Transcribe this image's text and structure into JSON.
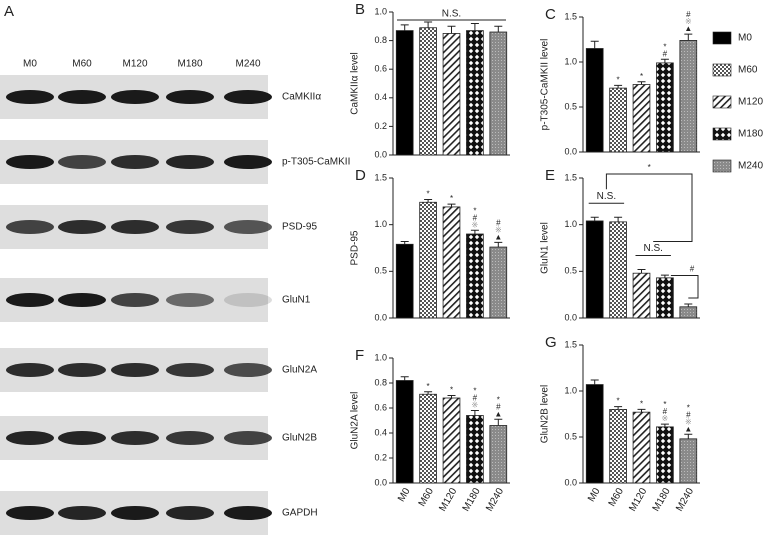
{
  "blot": {
    "panel_label": "A",
    "lanes": [
      "M0",
      "M60",
      "M120",
      "M180",
      "M240"
    ],
    "proteins": [
      "CaMKIIα",
      "p-T305-CaMKII",
      "PSD-95",
      "GluN1",
      "GluN2A",
      "GluN2B",
      "GAPDH"
    ]
  },
  "legend": [
    {
      "name": "M0",
      "pattern": "solid"
    },
    {
      "name": "M60",
      "pattern": "check"
    },
    {
      "name": "M120",
      "pattern": "hatch"
    },
    {
      "name": "M180",
      "pattern": "diamond"
    },
    {
      "name": "M240",
      "pattern": "gray"
    }
  ],
  "chart_data": [
    {
      "type": "bar",
      "panel_label": "B",
      "ylabel": "CaMKIIα level",
      "values": [
        0.87,
        0.89,
        0.85,
        0.87,
        0.86
      ],
      "errors": [
        0.04,
        0.04,
        0.05,
        0.05,
        0.04
      ],
      "ylim": [
        0,
        1.0
      ],
      "yticks": [
        {
          "value": 0,
          "label": "0.0"
        },
        0.2,
        0.4,
        0.6,
        0.8,
        {
          "value": 1.0,
          "label": "1.0"
        }
      ],
      "annotation": "N.S.",
      "bar_annotations": [
        [],
        [],
        [],
        [],
        []
      ]
    },
    {
      "type": "bar",
      "panel_label": "C",
      "ylabel": "p-T305-CaMKII level",
      "values": [
        1.15,
        0.71,
        0.75,
        0.99,
        1.24
      ],
      "errors": [
        0.08,
        0.03,
        0.03,
        0.04,
        0.07
      ],
      "ylim": [
        0,
        1.5
      ],
      "yticks": [
        {
          "value": 0,
          "label": "0.0"
        },
        0.5,
        {
          "value": 1.0,
          "label": "1.0"
        },
        1.5
      ],
      "bar_annotations": [
        [],
        [
          "*"
        ],
        [
          "*"
        ],
        [
          "*",
          "#"
        ],
        [
          "#",
          "※",
          "▲"
        ]
      ]
    },
    {
      "type": "bar",
      "panel_label": "D",
      "ylabel": "PSD-95",
      "values": [
        0.79,
        1.24,
        1.19,
        0.9,
        0.76
      ],
      "errors": [
        0.03,
        0.03,
        0.03,
        0.04,
        0.05
      ],
      "ylim": [
        0,
        1.5
      ],
      "yticks": [
        {
          "value": 0,
          "label": "0.0"
        },
        0.5,
        {
          "value": 1.0,
          "label": "1.0"
        },
        1.5
      ],
      "bar_annotations": [
        [],
        [
          "*"
        ],
        [
          "*"
        ],
        [
          "*",
          "#",
          "※"
        ],
        [
          "#",
          "※",
          "▲"
        ]
      ]
    },
    {
      "type": "bar",
      "panel_label": "E",
      "ylabel": "GluN1 level",
      "values": [
        1.04,
        1.03,
        0.48,
        0.43,
        0.12
      ],
      "errors": [
        0.04,
        0.05,
        0.04,
        0.03,
        0.03
      ],
      "ylim": [
        0,
        1.5
      ],
      "yticks": [
        {
          "value": 0,
          "label": "0.0"
        },
        0.5,
        {
          "value": 1.0,
          "label": "1.0"
        },
        1.5
      ],
      "brackets": [
        "N.S.",
        "N.S.",
        "*",
        "#"
      ],
      "bar_annotations": [
        [],
        [],
        [],
        [],
        []
      ]
    },
    {
      "type": "bar",
      "panel_label": "F",
      "ylabel": "GluN2A level",
      "categories": [
        "M0",
        "M60",
        "M120",
        "M180",
        "M240"
      ],
      "values": [
        0.82,
        0.71,
        0.68,
        0.54,
        0.46
      ],
      "errors": [
        0.03,
        0.02,
        0.02,
        0.04,
        0.05
      ],
      "ylim": [
        0,
        1.0
      ],
      "yticks": [
        {
          "value": 0,
          "label": "0.0"
        },
        0.2,
        0.4,
        0.6,
        0.8,
        {
          "value": 1.0,
          "label": "1.0"
        }
      ],
      "bar_annotations": [
        [],
        [
          "*"
        ],
        [
          "*"
        ],
        [
          "*",
          "#",
          "※"
        ],
        [
          "*",
          "#",
          "▲"
        ]
      ]
    },
    {
      "type": "bar",
      "panel_label": "G",
      "ylabel": "GluN2B level",
      "categories": [
        "M0",
        "M60",
        "M120",
        "M180",
        "M240"
      ],
      "values": [
        1.07,
        0.8,
        0.77,
        0.61,
        0.48
      ],
      "errors": [
        0.05,
        0.03,
        0.03,
        0.03,
        0.05
      ],
      "ylim": [
        0,
        1.5
      ],
      "yticks": [
        {
          "value": 0,
          "label": "0.0"
        },
        0.5,
        {
          "value": 1.0,
          "label": "1.0"
        },
        1.5
      ],
      "bar_annotations": [
        [],
        [
          "*"
        ],
        [
          "*"
        ],
        [
          "*",
          "#",
          "※"
        ],
        [
          "*",
          "#",
          "※",
          "▲"
        ]
      ]
    }
  ]
}
